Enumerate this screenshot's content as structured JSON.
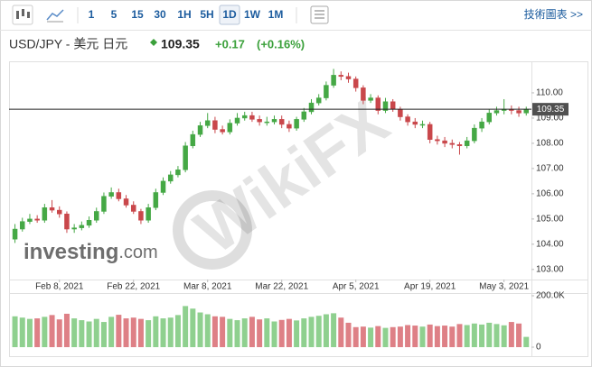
{
  "toolbar": {
    "intervals": [
      "1",
      "5",
      "15",
      "30",
      "1H",
      "5H",
      "1D",
      "1W",
      "1M"
    ],
    "active": "1D",
    "link": "技術圖表 >>"
  },
  "quote": {
    "pair": "USD/JPY - 美元 日元",
    "price": 109.35,
    "change": "+0.17",
    "change_pct": "(+0.16%)"
  },
  "logo": {
    "name": "investing",
    "suffix": ".com"
  },
  "watermark": "WikiFX",
  "chart_data": {
    "type": "candlestick",
    "x": [
      "2021-01-29",
      "2021-02-01",
      "2021-02-02",
      "2021-02-03",
      "2021-02-04",
      "2021-02-05",
      "2021-02-08",
      "2021-02-09",
      "2021-02-10",
      "2021-02-11",
      "2021-02-12",
      "2021-02-15",
      "2021-02-16",
      "2021-02-17",
      "2021-02-18",
      "2021-02-19",
      "2021-02-22",
      "2021-02-23",
      "2021-02-24",
      "2021-02-25",
      "2021-02-26",
      "2021-03-01",
      "2021-03-02",
      "2021-03-03",
      "2021-03-04",
      "2021-03-05",
      "2021-03-08",
      "2021-03-09",
      "2021-03-10",
      "2021-03-11",
      "2021-03-12",
      "2021-03-15",
      "2021-03-16",
      "2021-03-17",
      "2021-03-18",
      "2021-03-19",
      "2021-03-22",
      "2021-03-23",
      "2021-03-24",
      "2021-03-25",
      "2021-03-26",
      "2021-03-29",
      "2021-03-30",
      "2021-03-31",
      "2021-04-01",
      "2021-04-02",
      "2021-04-05",
      "2021-04-06",
      "2021-04-07",
      "2021-04-08",
      "2021-04-09",
      "2021-04-12",
      "2021-04-13",
      "2021-04-14",
      "2021-04-15",
      "2021-04-16",
      "2021-04-19",
      "2021-04-20",
      "2021-04-21",
      "2021-04-22",
      "2021-04-23",
      "2021-04-26",
      "2021-04-27",
      "2021-04-28",
      "2021-04-29",
      "2021-04-30",
      "2021-05-03",
      "2021-05-04",
      "2021-05-05",
      "2021-05-06"
    ],
    "open": [
      104.2,
      104.6,
      104.9,
      105.0,
      104.95,
      105.45,
      105.35,
      105.2,
      104.6,
      104.65,
      104.75,
      104.95,
      105.3,
      105.9,
      106.05,
      105.8,
      105.55,
      105.3,
      104.95,
      105.45,
      106.05,
      106.5,
      106.75,
      106.95,
      107.9,
      108.35,
      108.7,
      108.9,
      108.55,
      108.45,
      108.8,
      109.0,
      109.1,
      108.95,
      108.85,
      108.85,
      108.95,
      108.75,
      108.6,
      108.95,
      109.25,
      109.6,
      109.8,
      110.3,
      110.7,
      110.65,
      110.55,
      110.2,
      109.7,
      109.8,
      109.3,
      109.65,
      109.35,
      109.05,
      108.85,
      108.75,
      108.75,
      108.15,
      108.1,
      108.0,
      107.95,
      107.9,
      108.1,
      108.6,
      108.85,
      109.2,
      109.3,
      109.35,
      109.3,
      109.2
    ],
    "high": [
      104.8,
      105.05,
      105.2,
      105.15,
      105.6,
      105.75,
      105.5,
      105.3,
      104.8,
      104.9,
      105.1,
      105.45,
      106.05,
      106.25,
      106.2,
      105.95,
      105.7,
      105.4,
      105.6,
      106.2,
      106.65,
      106.9,
      107.1,
      108.05,
      108.5,
      108.85,
      109.2,
      109.05,
      108.7,
      108.95,
      109.2,
      109.25,
      109.25,
      109.1,
      109.05,
      109.1,
      109.1,
      108.9,
      109.05,
      109.4,
      109.75,
      109.95,
      110.45,
      110.95,
      110.85,
      110.8,
      110.65,
      110.3,
      109.95,
      109.9,
      109.8,
      109.75,
      109.45,
      109.15,
      109.0,
      108.9,
      108.85,
      108.3,
      108.25,
      108.15,
      108.05,
      108.25,
      108.75,
      109.0,
      109.35,
      109.45,
      109.75,
      109.5,
      109.45,
      109.45
    ],
    "low": [
      104.05,
      104.5,
      104.8,
      104.85,
      104.85,
      105.25,
      105.05,
      104.45,
      104.45,
      104.55,
      104.65,
      104.85,
      105.2,
      105.8,
      105.7,
      105.45,
      105.2,
      104.8,
      104.85,
      105.35,
      105.95,
      106.4,
      106.65,
      106.85,
      107.8,
      108.25,
      108.6,
      108.4,
      108.35,
      108.35,
      108.7,
      108.9,
      108.85,
      108.7,
      108.7,
      108.75,
      108.6,
      108.45,
      108.5,
      108.85,
      109.15,
      109.5,
      109.7,
      110.2,
      110.5,
      110.4,
      110.05,
      109.55,
      109.6,
      109.15,
      109.2,
      109.25,
      108.9,
      108.7,
      108.6,
      108.6,
      108.0,
      107.95,
      107.85,
      107.8,
      107.55,
      107.8,
      108.0,
      108.45,
      108.75,
      109.1,
      109.15,
      109.15,
      109.05,
      109.1
    ],
    "close": [
      104.6,
      104.9,
      105.0,
      104.95,
      105.45,
      105.35,
      105.2,
      104.6,
      104.65,
      104.75,
      104.95,
      105.3,
      105.9,
      106.05,
      105.8,
      105.55,
      105.3,
      104.95,
      105.45,
      106.05,
      106.5,
      106.75,
      106.95,
      107.9,
      108.35,
      108.7,
      108.9,
      108.55,
      108.45,
      108.8,
      109.0,
      109.1,
      108.95,
      108.85,
      108.85,
      108.95,
      108.75,
      108.6,
      108.95,
      109.25,
      109.6,
      109.8,
      110.3,
      110.7,
      110.65,
      110.55,
      110.2,
      109.7,
      109.8,
      109.3,
      109.65,
      109.35,
      109.05,
      108.85,
      108.75,
      108.75,
      108.15,
      108.1,
      108.0,
      107.95,
      107.9,
      108.1,
      108.6,
      108.85,
      109.2,
      109.3,
      109.35,
      109.3,
      109.2,
      109.35
    ],
    "up_color": "#45a845",
    "down_color": "#c9474b",
    "ylim": [
      102.6,
      111.25
    ],
    "yticks": [
      {
        "value": 103,
        "label": "103.00"
      },
      {
        "value": 104,
        "label": "104.00"
      },
      {
        "value": 105,
        "label": "105.00"
      },
      {
        "value": 106,
        "label": "106.00"
      },
      {
        "value": 107,
        "label": "107.00"
      },
      {
        "value": 108,
        "label": "108.00"
      },
      {
        "value": 109,
        "label": "109.00"
      },
      {
        "value": 110,
        "label": "110.00"
      }
    ],
    "xticks": [
      {
        "value": "2021-02-08",
        "label": "Feb 8, 2021"
      },
      {
        "value": "2021-02-22",
        "label": "Feb 22, 2021"
      },
      {
        "value": "2021-03-08",
        "label": "Mar 8, 2021"
      },
      {
        "value": "2021-03-22",
        "label": "Mar 22, 2021"
      },
      {
        "value": "2021-04-05",
        "label": "Apr 5, 2021"
      },
      {
        "value": "2021-04-19",
        "label": "Apr 19, 2021"
      },
      {
        "value": "2021-05-03",
        "label": "May 3, 2021"
      }
    ],
    "volume": {
      "values": [
        120000,
        115000,
        110000,
        112000,
        118000,
        125000,
        108000,
        130000,
        112000,
        105000,
        100000,
        110000,
        98000,
        118000,
        126000,
        112000,
        115000,
        110000,
        105000,
        120000,
        112000,
        115000,
        125000,
        160000,
        150000,
        135000,
        128000,
        120000,
        118000,
        110000,
        105000,
        112000,
        118000,
        108000,
        112000,
        100000,
        106000,
        110000,
        104000,
        112000,
        118000,
        122000,
        128000,
        132000,
        115000,
        95000,
        78000,
        80000,
        76000,
        82000,
        75000,
        78000,
        80000,
        86000,
        84000,
        80000,
        88000,
        82000,
        84000,
        80000,
        90000,
        86000,
        92000,
        88000,
        95000,
        90000,
        85000,
        98000,
        92000,
        40000
      ],
      "up_color": "#8fd08f",
      "down_color": "#de8086",
      "ylim": [
        0,
        200000
      ],
      "yticks": [
        0,
        {
          "value": 200000,
          "label": "200.0K"
        }
      ]
    }
  }
}
